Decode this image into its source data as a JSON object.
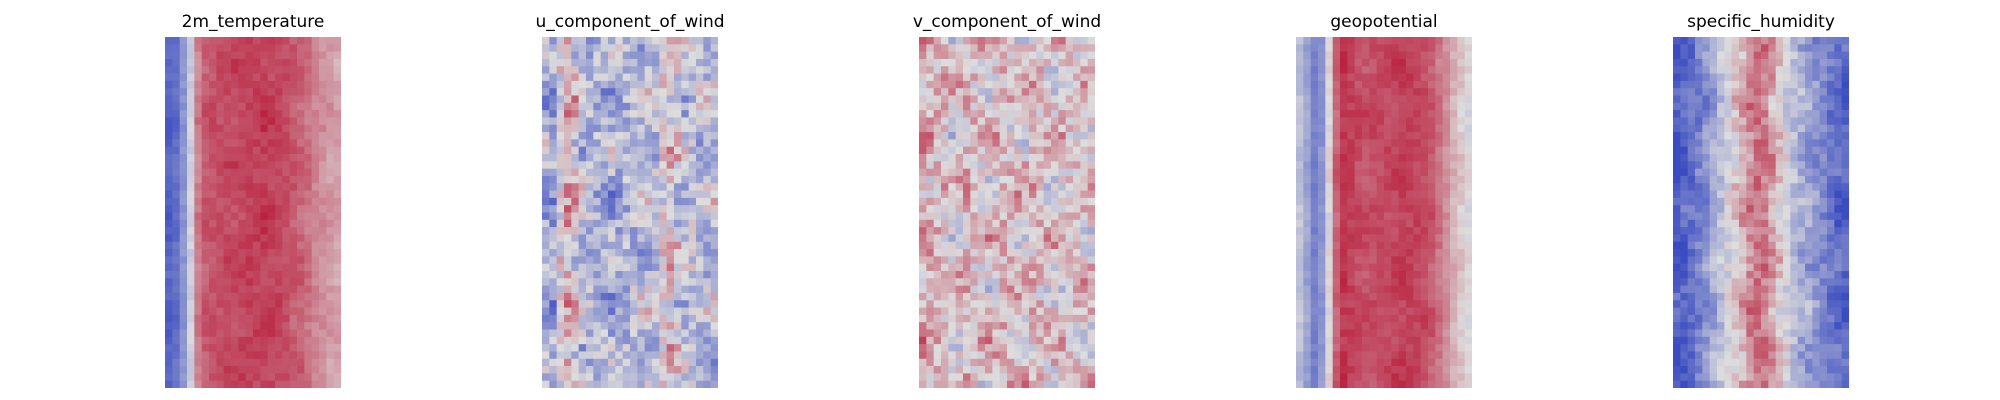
{
  "chart_data": [
    {
      "type": "heatmap",
      "title": "2m_temperature",
      "grid": false,
      "colormap": "coolwarm",
      "colors": [
        "#3b4cc0",
        "#dddddd",
        "#b40426"
      ],
      "value_range": [
        0,
        1
      ],
      "columns": 24,
      "rows": 48,
      "column_profile": [
        0.08,
        0.12,
        0.25,
        0.45,
        0.72,
        0.8,
        0.82,
        0.83,
        0.84,
        0.84,
        0.85,
        0.86,
        0.86,
        0.87,
        0.86,
        0.85,
        0.83,
        0.8,
        0.78,
        0.75,
        0.7,
        0.68,
        0.66,
        0.64
      ],
      "noise": 0.05
    },
    {
      "type": "heatmap",
      "title": "u_component_of_wind",
      "grid": false,
      "colormap": "coolwarm",
      "colors": [
        "#3b4cc0",
        "#dddddd",
        "#b40426"
      ],
      "value_range": [
        0,
        1
      ],
      "columns": 24,
      "rows": 48,
      "column_profile": [
        0.35,
        0.3,
        0.5,
        0.62,
        0.52,
        0.42,
        0.38,
        0.35,
        0.34,
        0.33,
        0.34,
        0.36,
        0.37,
        0.38,
        0.4,
        0.42,
        0.5,
        0.55,
        0.45,
        0.4,
        0.42,
        0.4,
        0.38,
        0.4
      ],
      "noise": 0.22
    },
    {
      "type": "heatmap",
      "title": "v_component_of_wind",
      "grid": false,
      "colormap": "coolwarm",
      "colors": [
        "#3b4cc0",
        "#dddddd",
        "#b40426"
      ],
      "value_range": [
        0,
        1
      ],
      "columns": 24,
      "rows": 48,
      "column_profile": [
        0.62,
        0.6,
        0.58,
        0.55,
        0.52,
        0.55,
        0.58,
        0.56,
        0.54,
        0.55,
        0.57,
        0.58,
        0.56,
        0.55,
        0.56,
        0.58,
        0.57,
        0.55,
        0.54,
        0.55,
        0.56,
        0.55,
        0.54,
        0.55
      ],
      "noise": 0.2
    },
    {
      "type": "heatmap",
      "title": "geopotential",
      "grid": false,
      "colormap": "coolwarm",
      "colors": [
        "#3b4cc0",
        "#dddddd",
        "#b40426"
      ],
      "value_range": [
        0,
        1
      ],
      "columns": 24,
      "rows": 48,
      "column_profile": [
        0.4,
        0.3,
        0.18,
        0.25,
        0.5,
        0.78,
        0.88,
        0.86,
        0.84,
        0.83,
        0.83,
        0.84,
        0.84,
        0.85,
        0.86,
        0.86,
        0.85,
        0.84,
        0.8,
        0.74,
        0.68,
        0.6,
        0.55,
        0.5
      ],
      "noise": 0.05
    },
    {
      "type": "heatmap",
      "title": "specific_humidity",
      "grid": false,
      "colormap": "coolwarm",
      "colors": [
        "#3b4cc0",
        "#dddddd",
        "#b40426"
      ],
      "value_range": [
        0,
        1
      ],
      "columns": 24,
      "rows": 48,
      "column_profile": [
        0.05,
        0.08,
        0.12,
        0.18,
        0.25,
        0.32,
        0.4,
        0.48,
        0.55,
        0.62,
        0.7,
        0.75,
        0.72,
        0.65,
        0.55,
        0.48,
        0.4,
        0.34,
        0.3,
        0.25,
        0.2,
        0.15,
        0.1,
        0.08
      ],
      "noise": 0.12
    }
  ]
}
